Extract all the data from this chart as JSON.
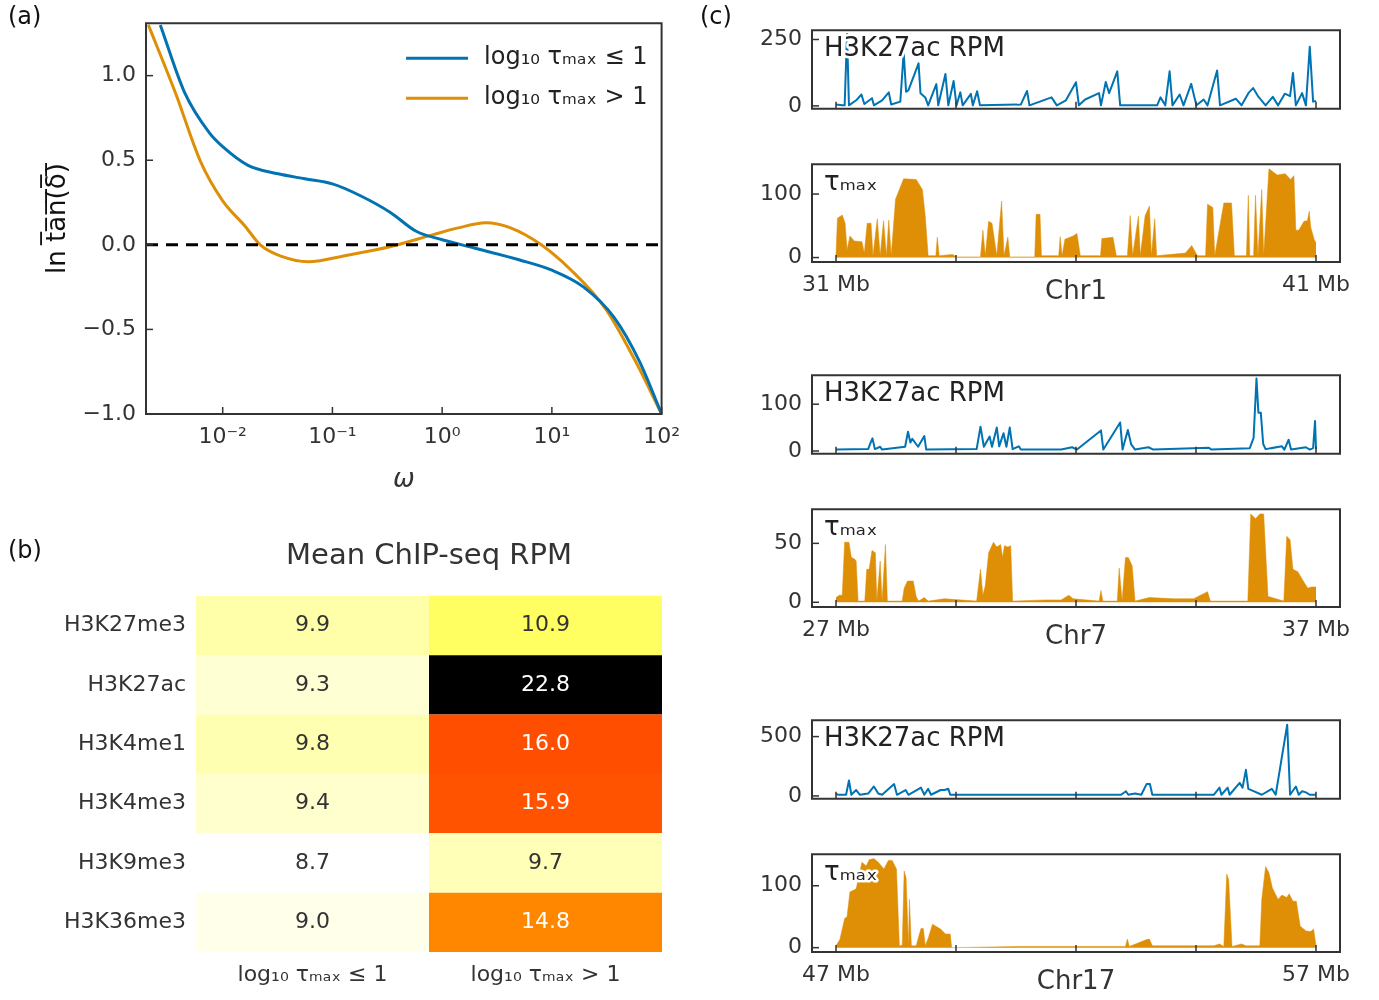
{
  "chart_data": [
    {
      "type": "line",
      "xlabel": "ω",
      "ylabel": "ln t̅a̅n̅(̅δ̅)̅",
      "log": "x",
      "xlim": [
        0.002,
        100
      ],
      "ylim": [
        -1,
        1.31
      ],
      "xticks": [
        {
          "value": 0.01,
          "label": "10⁻²"
        },
        {
          "value": 0.1,
          "label": "10⁻¹"
        },
        {
          "value": 1,
          "label": "10⁰"
        },
        {
          "value": 10,
          "label": "10¹"
        },
        {
          "value": 100,
          "label": "10²"
        }
      ],
      "yticks": [
        {
          "value": -1,
          "label": "−1.0"
        },
        {
          "value": -0.5,
          "label": "−0.5"
        },
        {
          "value": 0,
          "label": "0.0"
        },
        {
          "value": 0.5,
          "label": "0.5"
        },
        {
          "value": 1,
          "label": "1.0"
        }
      ],
      "legend": "top right",
      "annotations": [
        "(a)"
      ],
      "ref_lines": [
        {
          "axis": "y",
          "value": 0,
          "color": "#000000",
          "line_style": "dashed"
        }
      ],
      "series": [
        {
          "name": "log₁₀ τₘₐₓ ≤ 1",
          "color": "#0173b2",
          "x": [
            0.0027,
            0.0045,
            0.0076,
            0.01,
            0.017,
            0.032,
            0.056,
            0.1,
            0.18,
            0.34,
            0.58,
            1,
            2,
            5.1,
            10,
            19.5,
            37,
            63,
            100
          ],
          "values": [
            1.3,
            0.9,
            0.66,
            0.58,
            0.47,
            0.42,
            0.39,
            0.36,
            0.29,
            0.19,
            0.08,
            0.03,
            -0.02,
            -0.09,
            -0.15,
            -0.25,
            -0.43,
            -0.69,
            -1.0
          ]
        },
        {
          "name": "log₁₀ τₘₐₓ > 1",
          "color": "#de8f05",
          "x": [
            0.0021,
            0.0037,
            0.0063,
            0.01,
            0.016,
            0.022,
            0.035,
            0.06,
            0.14,
            0.34,
            0.83,
            1.4,
            2.5,
            4.2,
            8,
            15,
            31,
            58,
            100
          ],
          "values": [
            1.3,
            0.9,
            0.49,
            0.26,
            0.11,
            0.0,
            -0.07,
            -0.1,
            -0.06,
            -0.01,
            0.06,
            0.1,
            0.13,
            0.1,
            0.0,
            -0.15,
            -0.38,
            -0.69,
            -1.0
          ]
        }
      ]
    },
    {
      "type": "heatmap",
      "title": "Mean ChIP-seq RPM",
      "annotations": [
        "(b)"
      ],
      "categories": [
        "log₁₀ τₘₐₓ ≤ 1",
        "log₁₀ τₘₐₓ > 1"
      ],
      "y_categories": [
        "H3K27me3",
        "H3K27ac",
        "H3K4me1",
        "H3K4me3",
        "H3K9me3",
        "H3K36me3"
      ],
      "cells": [
        [
          9.9,
          10.9
        ],
        [
          9.3,
          22.8
        ],
        [
          9.8,
          16.0
        ],
        [
          9.4,
          15.9
        ],
        [
          8.7,
          9.7
        ],
        [
          9.0,
          14.8
        ]
      ],
      "cell_labels": [
        [
          "9.9",
          "10.9"
        ],
        [
          "9.3",
          "22.8"
        ],
        [
          "9.8",
          "16.0"
        ],
        [
          "9.4",
          "15.9"
        ],
        [
          "8.7",
          "9.7"
        ],
        [
          "9.0",
          "14.8"
        ]
      ]
    },
    {
      "type": "line",
      "annotations": [
        "(c)"
      ],
      "tick_labels": "y",
      "xlim": [
        30.5,
        41.5
      ],
      "ylim": [
        -11,
        285
      ],
      "yticks": [
        0,
        250
      ],
      "xticks": [
        {
          "value": 31,
          "label": null
        },
        {
          "value": 33.5,
          "label": null
        },
        {
          "value": 36,
          "label": null
        },
        {
          "value": 38.5,
          "label": null
        },
        {
          "value": 41,
          "label": null
        }
      ],
      "series": [
        {
          "name": "H3K27ac RPM",
          "color": "#0173b2",
          "x": [
            31.0,
            31.13,
            31.18,
            31.23,
            31.27,
            31.42,
            31.53,
            31.59,
            31.75,
            31.79,
            31.96,
            32.1,
            32.15,
            32.34,
            32.41,
            32.46,
            32.51,
            32.72,
            32.76,
            32.86,
            32.92,
            33.09,
            33.13,
            33.28,
            33.34,
            33.45,
            33.51,
            33.59,
            33.64,
            33.81,
            33.85,
            33.94,
            34.0,
            34.85,
            34.98,
            35.03,
            35.49,
            35.6,
            35.79,
            36.0,
            36.06,
            36.19,
            36.48,
            36.52,
            36.62,
            36.69,
            36.86,
            36.92,
            37.69,
            37.76,
            37.86,
            37.95,
            38.01,
            38.16,
            38.24,
            38.4,
            38.46,
            38.51,
            38.66,
            38.74,
            38.94,
            39.0,
            39.33,
            39.45,
            39.6,
            39.69,
            39.79,
            39.95,
            40.1,
            40.21,
            40.35,
            40.46,
            40.52,
            40.58,
            40.71,
            40.79,
            40.87,
            40.94,
            41.0
          ],
          "values": [
            5,
            2,
            2,
            271,
            2,
            21,
            43,
            7,
            29,
            2,
            21,
            51,
            5,
            16,
            202,
            53,
            59,
            160,
            48,
            32,
            2,
            82,
            2,
            120,
            2,
            94,
            2,
            51,
            2,
            45,
            2,
            55,
            2,
            5,
            56,
            2,
            32,
            2,
            21,
            89,
            2,
            24,
            48,
            2,
            90,
            48,
            130,
            2,
            2,
            32,
            2,
            130,
            2,
            43,
            2,
            83,
            37,
            2,
            24,
            2,
            133,
            2,
            27,
            2,
            50,
            67,
            37,
            2,
            34,
            2,
            46,
            37,
            124,
            2,
            48,
            2,
            223,
            16,
            18
          ]
        }
      ]
    },
    {
      "type": "area",
      "xlabel": "Chr1",
      "xlim": [
        30.5,
        41.5
      ],
      "ylim": [
        -7,
        147
      ],
      "yticks": [
        0,
        100
      ],
      "xticks": [
        {
          "value": 31,
          "label": "31 Mb"
        },
        {
          "value": 33.5,
          "label": null
        },
        {
          "value": 36,
          "label": null
        },
        {
          "value": 38.5,
          "label": null
        },
        {
          "value": 41,
          "label": "41 Mb"
        }
      ],
      "series": [
        {
          "name": "τₘₐₓ",
          "color": "#de8f05",
          "x": [
            31.0,
            31.03,
            31.13,
            31.19,
            31.23,
            31.29,
            31.38,
            31.54,
            31.59,
            31.65,
            31.73,
            31.77,
            31.86,
            31.92,
            31.99,
            32.05,
            32.1,
            32.15,
            32.24,
            32.41,
            32.67,
            32.8,
            32.86,
            32.92,
            33.08,
            33.11,
            33.15,
            33.43,
            33.51,
            34.01,
            34.06,
            34.11,
            34.18,
            34.25,
            34.35,
            34.45,
            34.5,
            34.58,
            34.62,
            35.14,
            35.17,
            35.25,
            35.28,
            35.64,
            35.67,
            35.71,
            35.77,
            35.94,
            36.02,
            36.09,
            36.51,
            36.54,
            36.77,
            36.84,
            37.07,
            37.13,
            37.18,
            37.3,
            37.34,
            37.44,
            37.53,
            37.57,
            37.64,
            37.68,
            38.28,
            38.41,
            38.53,
            38.7,
            38.74,
            38.85,
            38.89,
            39.08,
            39.24,
            39.3,
            39.55,
            39.59,
            39.62,
            39.7,
            39.74,
            39.79,
            39.87,
            39.91,
            40.02,
            40.19,
            40.36,
            40.47,
            40.54,
            40.58,
            40.64,
            40.75,
            40.82,
            40.86,
            40.89,
            40.96,
            41.0
          ],
          "values": [
            4,
            62,
            67,
            54,
            12,
            34,
            26,
            25,
            7,
            54,
            54,
            3,
            61,
            3,
            58,
            3,
            59,
            3,
            92,
            124,
            123,
            107,
            65,
            3,
            3,
            32,
            3,
            5,
            1,
            1,
            43,
            3,
            57,
            54,
            3,
            89,
            3,
            32,
            1,
            1,
            68,
            68,
            3,
            3,
            33,
            3,
            29,
            34,
            38,
            3,
            3,
            30,
            32,
            3,
            3,
            66,
            3,
            65,
            3,
            66,
            81,
            3,
            61,
            3,
            7,
            19,
            3,
            3,
            84,
            79,
            3,
            86,
            86,
            3,
            3,
            98,
            3,
            3,
            98,
            3,
            107,
            3,
            140,
            130,
            132,
            123,
            129,
            43,
            43,
            57,
            58,
            73,
            48,
            29,
            23
          ]
        }
      ]
    },
    {
      "type": "line",
      "tick_labels": "y",
      "xlim": [
        26.5,
        37.5
      ],
      "ylim": [
        -6,
        162
      ],
      "yticks": [
        0,
        100
      ],
      "xticks": [
        {
          "value": 27,
          "label": null
        },
        {
          "value": 29.5,
          "label": null
        },
        {
          "value": 32,
          "label": null
        },
        {
          "value": 34.5,
          "label": null
        },
        {
          "value": 37,
          "label": null
        }
      ],
      "series": [
        {
          "name": "H3K27ac RPM",
          "color": "#0173b2",
          "x": [
            27.0,
            27.67,
            27.71,
            27.76,
            27.81,
            27.92,
            27.96,
            28.44,
            28.5,
            28.55,
            28.59,
            28.66,
            28.71,
            28.84,
            28.88,
            29.93,
            30.01,
            30.08,
            30.2,
            30.25,
            30.35,
            30.4,
            30.49,
            30.55,
            30.62,
            30.68,
            30.81,
            30.85,
            31.69,
            31.92,
            32.02,
            32.52,
            32.57,
            32.92,
            32.97,
            33.08,
            33.15,
            33.23,
            33.51,
            33.61,
            34.77,
            34.82,
            35.62,
            35.7,
            35.76,
            35.8,
            35.85,
            35.9,
            35.95,
            36.29,
            36.34,
            36.43,
            36.48,
            36.79,
            36.87,
            36.94,
            36.98,
            37.0
          ],
          "values": [
            3,
            4,
            15,
            27,
            4,
            9,
            3,
            9,
            41,
            18,
            26,
            16,
            9,
            32,
            3,
            4,
            52,
            9,
            31,
            9,
            50,
            10,
            38,
            9,
            50,
            4,
            10,
            3,
            3,
            8,
            3,
            44,
            3,
            61,
            3,
            45,
            14,
            3,
            8,
            3,
            7,
            3,
            6,
            28,
            155,
            82,
            82,
            15,
            4,
            10,
            3,
            24,
            3,
            8,
            3,
            6,
            64,
            4
          ]
        }
      ]
    },
    {
      "type": "area",
      "xlabel": "Chr7",
      "xlim": [
        26.5,
        37.5
      ],
      "ylim": [
        -4,
        79
      ],
      "yticks": [
        0,
        50
      ],
      "xticks": [
        {
          "value": 27,
          "label": "27 Mb"
        },
        {
          "value": 29.5,
          "label": null
        },
        {
          "value": 32,
          "label": null
        },
        {
          "value": 34.5,
          "label": null
        },
        {
          "value": 37,
          "label": "37 Mb"
        }
      ],
      "series": [
        {
          "name": "τₘₐₓ",
          "color": "#de8f05",
          "x": [
            27.0,
            27.07,
            27.13,
            27.18,
            27.27,
            27.32,
            27.38,
            27.42,
            27.46,
            27.6,
            27.64,
            27.69,
            27.75,
            27.82,
            27.85,
            27.92,
            27.96,
            28.03,
            28.07,
            28.38,
            28.42,
            28.49,
            28.61,
            28.67,
            28.72,
            28.84,
            28.92,
            29.26,
            29.93,
            30.01,
            30.06,
            30.11,
            30.18,
            30.28,
            30.35,
            30.43,
            30.47,
            30.51,
            30.58,
            30.64,
            30.68,
            31.35,
            31.69,
            31.85,
            31.94,
            32.48,
            32.52,
            32.56,
            32.86,
            32.9,
            32.96,
            33.03,
            33.09,
            33.17,
            33.23,
            33.53,
            34.03,
            34.45,
            34.74,
            34.8,
            35.58,
            35.64,
            35.74,
            35.83,
            35.91,
            36.0,
            36.33,
            36.39,
            36.46,
            36.52,
            36.62,
            36.75,
            36.83,
            36.9,
            36.96,
            37.0
          ],
          "values": [
            4,
            6,
            6,
            51,
            51,
            38,
            37,
            35,
            1,
            1,
            28,
            28,
            44,
            42,
            1,
            35,
            1,
            49,
            1,
            1,
            12,
            18,
            18,
            5,
            1,
            4,
            1,
            3,
            1,
            28,
            6,
            14,
            42,
            51,
            47,
            49,
            38,
            48,
            47,
            48,
            1,
            2,
            2,
            6,
            3,
            1,
            10,
            1,
            1,
            29,
            1,
            38,
            38,
            31,
            1,
            4,
            3,
            3,
            9,
            1,
            1,
            75,
            71,
            75,
            75,
            5,
            1,
            56,
            53,
            28,
            26,
            17,
            12,
            13,
            13,
            13
          ]
        }
      ]
    },
    {
      "type": "line",
      "tick_labels": "y",
      "xlim": [
        46.5,
        57.5
      ],
      "ylim": [
        -24,
        638
      ],
      "yticks": [
        0,
        500
      ],
      "xticks": [
        {
          "value": 47,
          "label": null
        },
        {
          "value": 49.5,
          "label": null
        },
        {
          "value": 52,
          "label": null
        },
        {
          "value": 54.5,
          "label": null
        },
        {
          "value": 57,
          "label": null
        }
      ],
      "series": [
        {
          "name": "H3K27ac RPM",
          "color": "#0173b2",
          "x": [
            47.0,
            47.04,
            47.21,
            47.27,
            47.32,
            47.42,
            47.5,
            47.67,
            47.79,
            47.88,
            47.96,
            48.21,
            48.27,
            48.45,
            48.51,
            48.77,
            48.84,
            48.92,
            48.98,
            49.18,
            49.26,
            49.34,
            49.38,
            52.94,
            53.04,
            53.09,
            53.23,
            53.36,
            53.47,
            53.54,
            53.59,
            54.87,
            54.99,
            55.03,
            55.16,
            55.2,
            55.41,
            55.47,
            55.54,
            55.59,
            55.7,
            55.87,
            56.08,
            56.16,
            56.4,
            56.46,
            56.58,
            56.64,
            56.71,
            56.79,
            56.87,
            57.0
          ],
          "values": [
            20,
            10,
            10,
            130,
            10,
            50,
            10,
            20,
            80,
            20,
            10,
            100,
            10,
            50,
            10,
            70,
            10,
            60,
            10,
            50,
            50,
            60,
            10,
            10,
            40,
            10,
            20,
            10,
            100,
            100,
            10,
            10,
            70,
            10,
            70,
            10,
            110,
            70,
            220,
            60,
            40,
            10,
            60,
            10,
            600,
            10,
            80,
            10,
            40,
            30,
            10,
            10
          ]
        }
      ]
    },
    {
      "type": "area",
      "xlabel": "Chr17",
      "xlim": [
        46.5,
        57.5
      ],
      "ylim": [
        -7,
        151
      ],
      "yticks": [
        0,
        100
      ],
      "xticks": [
        {
          "value": 47,
          "label": "47 Mb"
        },
        {
          "value": 49.5,
          "label": null
        },
        {
          "value": 52,
          "label": null
        },
        {
          "value": 54.5,
          "label": null
        },
        {
          "value": 57,
          "label": "57 Mb"
        }
      ],
      "series": [
        {
          "name": "τₘₐₓ",
          "color": "#de8f05",
          "x": [
            47.0,
            47.08,
            47.18,
            47.23,
            47.29,
            47.42,
            47.54,
            47.63,
            47.69,
            47.79,
            47.88,
            48.0,
            48.09,
            48.17,
            48.26,
            48.32,
            48.38,
            48.42,
            48.46,
            48.51,
            48.53,
            48.57,
            48.67,
            48.77,
            48.82,
            48.86,
            48.92,
            49.01,
            49.09,
            49.18,
            49.28,
            49.38,
            49.41,
            50.85,
            53.03,
            53.07,
            53.11,
            53.47,
            53.53,
            53.59,
            54.87,
            54.99,
            55.08,
            55.14,
            55.18,
            55.25,
            55.45,
            55.54,
            55.83,
            55.87,
            55.95,
            56.02,
            56.09,
            56.21,
            56.29,
            56.39,
            56.44,
            56.52,
            56.59,
            56.67,
            56.79,
            56.89,
            56.95,
            57.0
          ],
          "values": [
            3,
            13,
            47,
            50,
            90,
            95,
            138,
            132,
            142,
            144,
            138,
            127,
            141,
            141,
            127,
            3,
            4,
            124,
            113,
            3,
            78,
            3,
            3,
            31,
            31,
            3,
            15,
            38,
            34,
            30,
            22,
            22,
            0,
            2,
            2,
            14,
            2,
            13,
            14,
            3,
            3,
            6,
            2,
            119,
            110,
            2,
            6,
            3,
            3,
            78,
            131,
            121,
            97,
            78,
            85,
            81,
            87,
            75,
            75,
            35,
            27,
            26,
            30,
            3
          ]
        }
      ]
    }
  ]
}
